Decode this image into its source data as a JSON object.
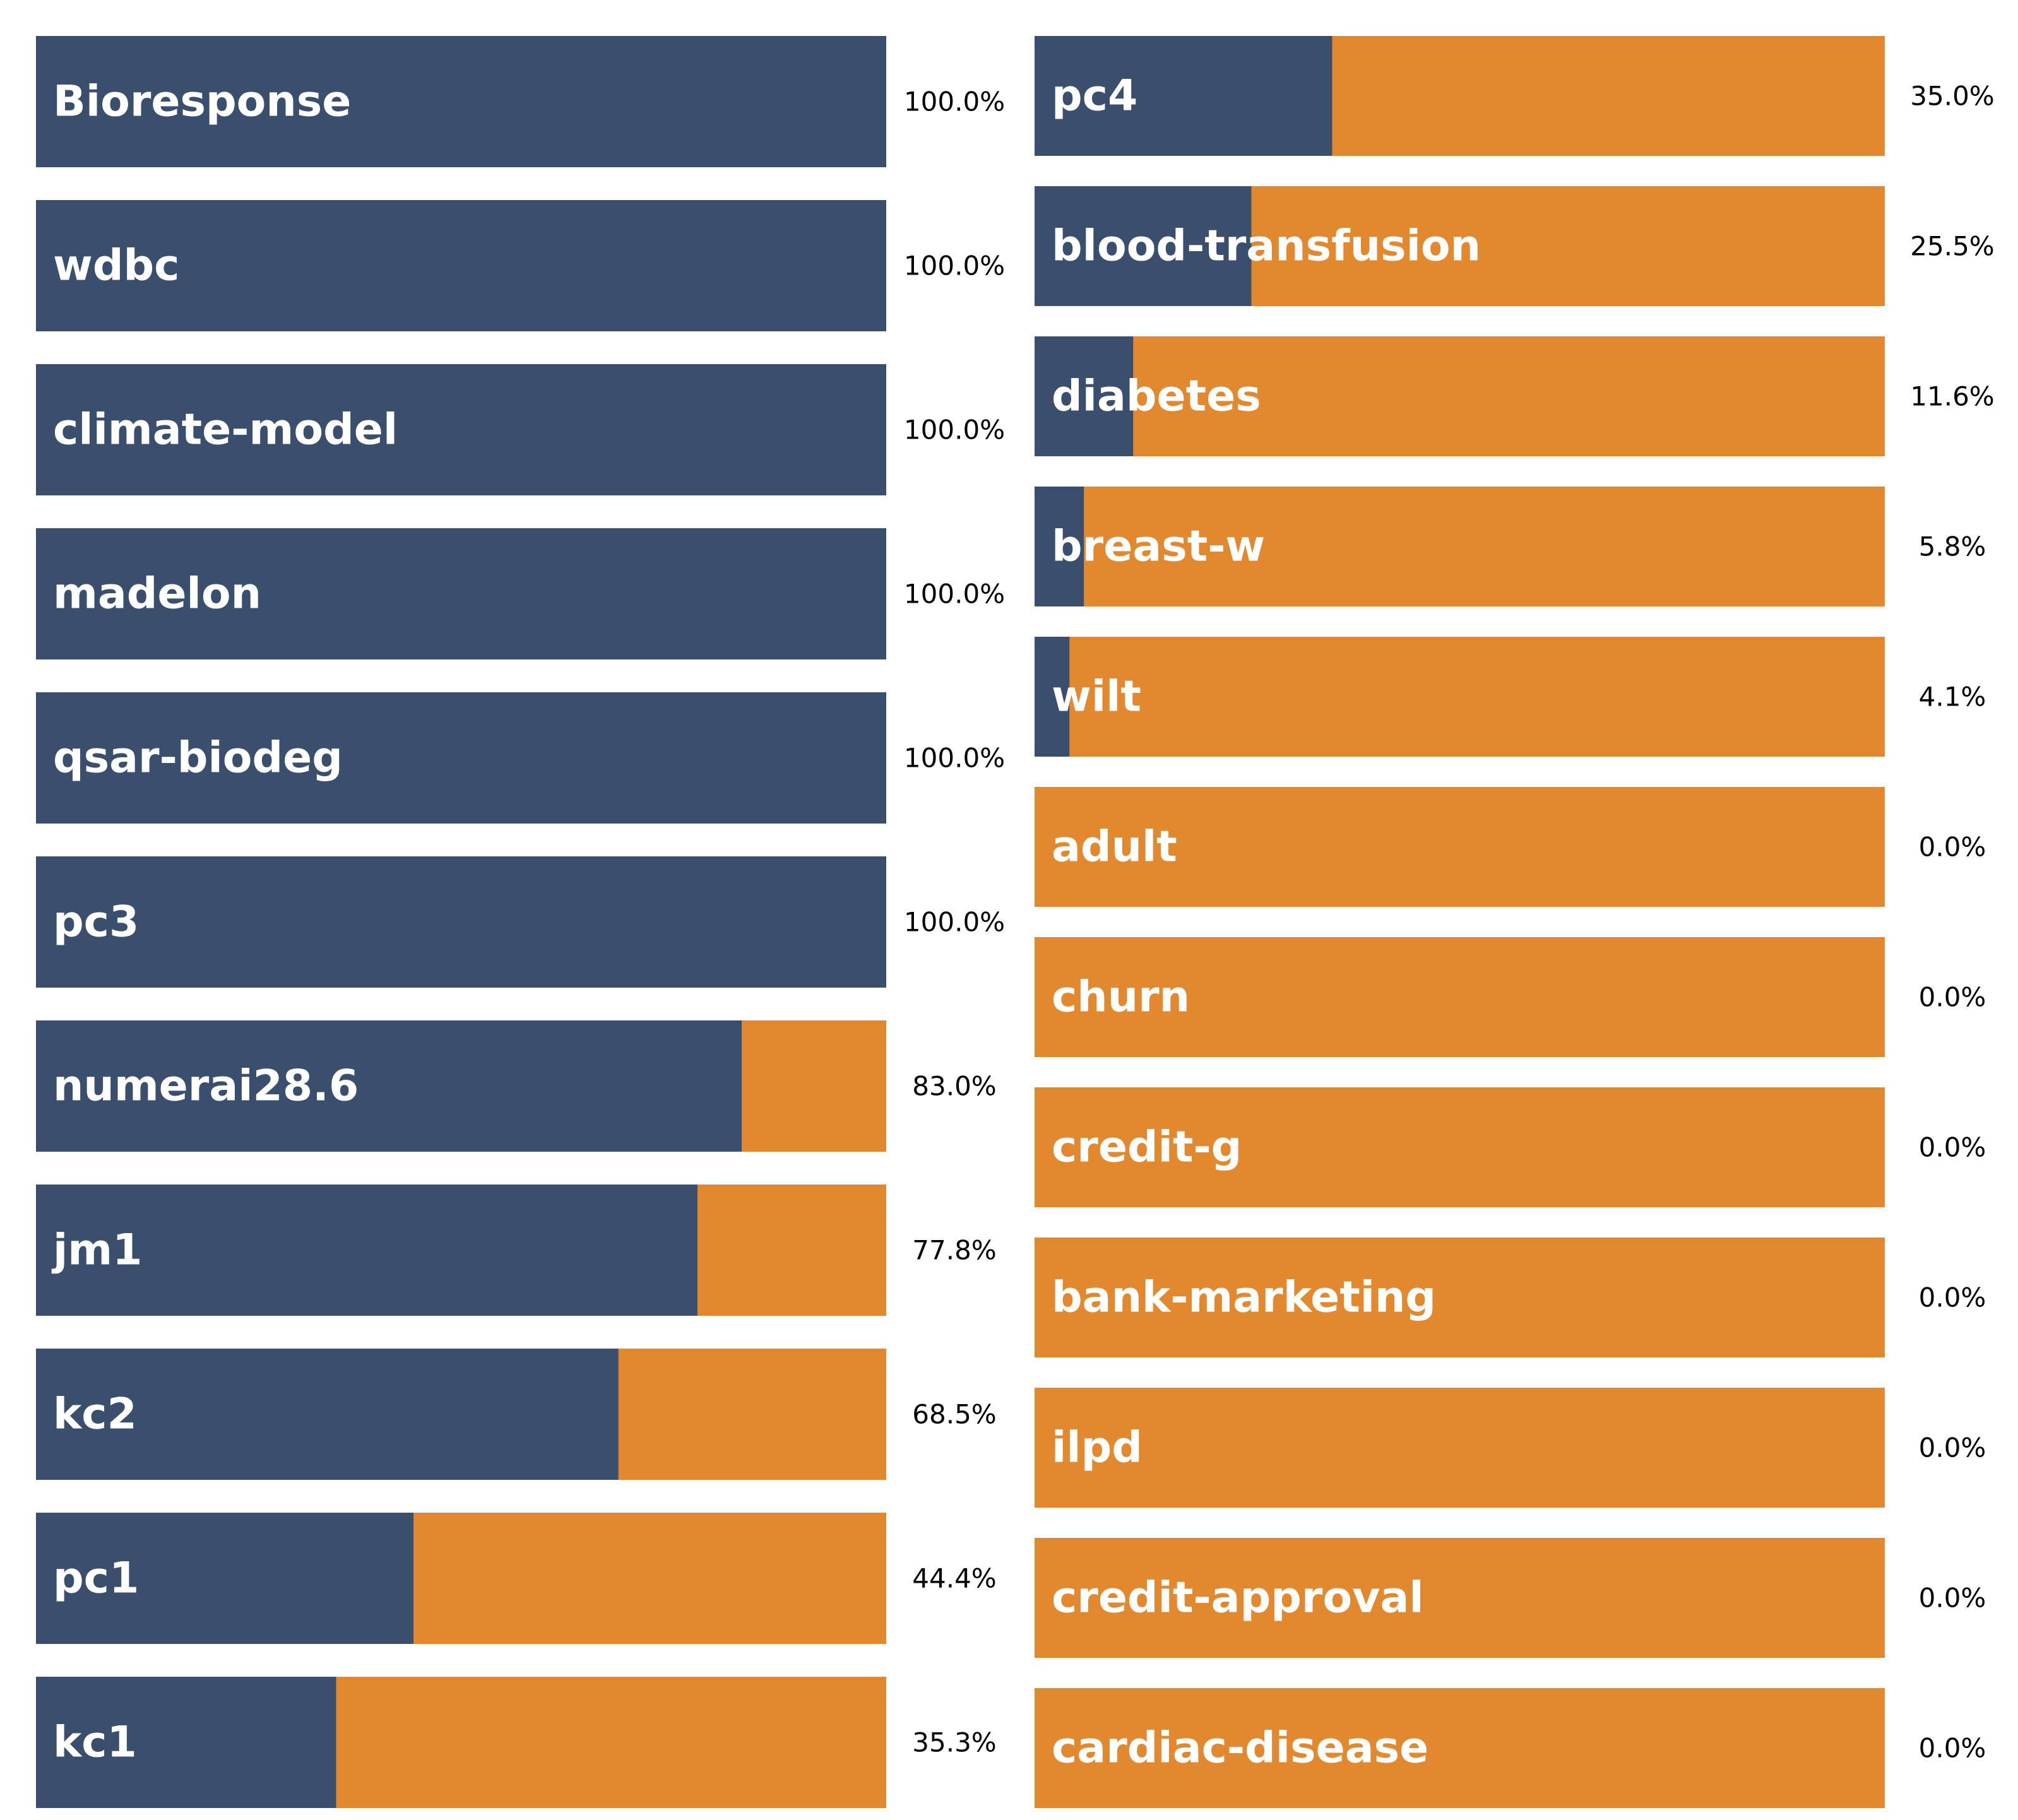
{
  "colors": {
    "selected": "#3a4f6e",
    "rest": "#e2882e",
    "label": "#ffffff",
    "pct": "#000000"
  },
  "chart_data": [
    {
      "type": "bar",
      "orientation": "horizontal",
      "stacked": true,
      "xlim": [
        0,
        100
      ],
      "value_unit": "%",
      "categories": [
        "Bioresponse",
        "wdbc",
        "climate-model",
        "madelon",
        "qsar-biodeg",
        "pc3",
        "numerai28.6",
        "jm1",
        "kc2",
        "pc1",
        "kc1"
      ],
      "values": [
        100.0,
        100.0,
        100.0,
        100.0,
        100.0,
        100.0,
        83.0,
        77.8,
        68.5,
        44.4,
        35.3
      ],
      "value_labels": [
        "100.0%",
        "100.0%",
        "100.0%",
        "100.0%",
        "100.0%",
        "100.0%",
        "83.0%",
        "77.8%",
        "68.5%",
        "44.4%",
        "35.3%"
      ]
    },
    {
      "type": "bar",
      "orientation": "horizontal",
      "stacked": true,
      "xlim": [
        0,
        100
      ],
      "value_unit": "%",
      "categories": [
        "pc4",
        "blood-transfusion",
        "diabetes",
        "breast-w",
        "wilt",
        "adult",
        "churn",
        "credit-g",
        "bank-marketing",
        "ilpd",
        "credit-approval",
        "cardiac-disease"
      ],
      "values": [
        35.0,
        25.5,
        11.6,
        5.8,
        4.1,
        0.0,
        0.0,
        0.0,
        0.0,
        0.0,
        0.0,
        0.0
      ],
      "value_labels": [
        "35.0%",
        "25.5%",
        "11.6%",
        "5.8%",
        "4.1%",
        "0.0%",
        "0.0%",
        "0.0%",
        "0.0%",
        "0.0%",
        "0.0%",
        "0.0%"
      ]
    }
  ]
}
